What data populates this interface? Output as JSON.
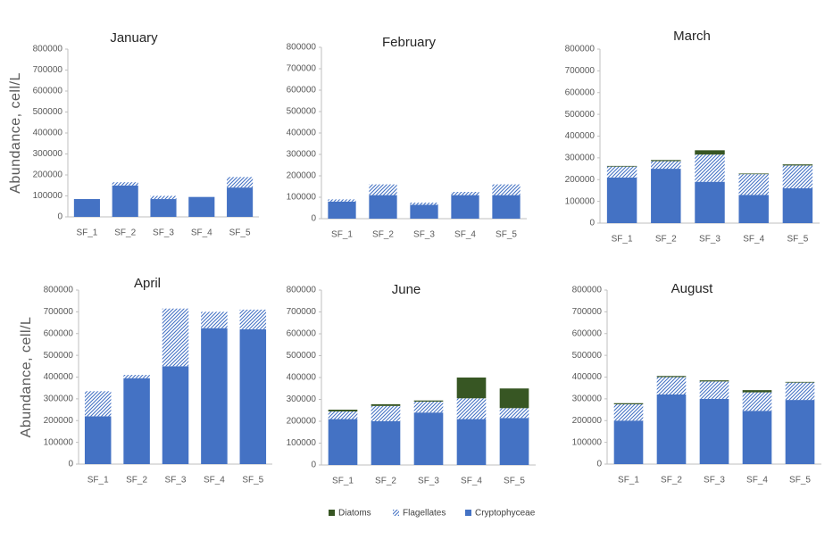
{
  "chart_data": [
    {
      "type": "bar",
      "stacked": true,
      "title": "January",
      "ylabel": "Abundance, cell/L",
      "categories": [
        "SF_1",
        "SF_2",
        "SF_3",
        "SF_4",
        "SF_5"
      ],
      "series": [
        {
          "name": "Cryptophyceae",
          "color": "#4472c4",
          "values": [
            85000,
            150000,
            85000,
            95000,
            140000
          ]
        },
        {
          "name": "Flagellates",
          "color": "#4472c4",
          "hatch": true,
          "values": [
            0,
            15000,
            15000,
            0,
            50000
          ]
        },
        {
          "name": "Diatoms",
          "color": "#375623",
          "values": [
            0,
            0,
            0,
            0,
            0
          ]
        }
      ],
      "ylim": [
        0,
        800000
      ],
      "yticks": [
        0,
        100000,
        200000,
        300000,
        400000,
        500000,
        600000,
        700000,
        800000
      ]
    },
    {
      "type": "bar",
      "stacked": true,
      "title": "February",
      "categories": [
        "SF_1",
        "SF_2",
        "SF_3",
        "SF_4",
        "SF_5"
      ],
      "series": [
        {
          "name": "Cryptophyceae",
          "color": "#4472c4",
          "values": [
            80000,
            110000,
            65000,
            110000,
            110000
          ]
        },
        {
          "name": "Flagellates",
          "color": "#4472c4",
          "hatch": true,
          "values": [
            10000,
            50000,
            10000,
            15000,
            50000
          ]
        },
        {
          "name": "Diatoms",
          "color": "#375623",
          "values": [
            0,
            0,
            0,
            0,
            0
          ]
        }
      ],
      "ylim": [
        0,
        800000
      ],
      "yticks": [
        0,
        100000,
        200000,
        300000,
        400000,
        500000,
        600000,
        700000,
        800000
      ]
    },
    {
      "type": "bar",
      "stacked": true,
      "title": "March",
      "categories": [
        "SF_1",
        "SF_2",
        "SF_3",
        "SF_4",
        "SF_5"
      ],
      "series": [
        {
          "name": "Cryptophyceae",
          "color": "#4472c4",
          "values": [
            210000,
            250000,
            190000,
            130000,
            160000
          ]
        },
        {
          "name": "Flagellates",
          "color": "#4472c4",
          "hatch": true,
          "values": [
            50000,
            35000,
            125000,
            95000,
            105000
          ]
        },
        {
          "name": "Diatoms",
          "color": "#375623",
          "values": [
            3000,
            5000,
            20000,
            3000,
            5000
          ]
        }
      ],
      "ylim": [
        0,
        800000
      ],
      "yticks": [
        0,
        100000,
        200000,
        300000,
        400000,
        500000,
        600000,
        700000,
        800000
      ]
    },
    {
      "type": "bar",
      "stacked": true,
      "title": "April",
      "ylabel": "Abundance, cell/L",
      "categories": [
        "SF_1",
        "SF_2",
        "SF_3",
        "SF_4",
        "SF_5"
      ],
      "series": [
        {
          "name": "Cryptophyceae",
          "color": "#4472c4",
          "values": [
            220000,
            395000,
            450000,
            625000,
            620000
          ]
        },
        {
          "name": "Flagellates",
          "color": "#4472c4",
          "hatch": true,
          "values": [
            115000,
            15000,
            265000,
            75000,
            90000
          ]
        },
        {
          "name": "Diatoms",
          "color": "#375623",
          "values": [
            0,
            0,
            0,
            0,
            0
          ]
        }
      ],
      "ylim": [
        0,
        800000
      ],
      "yticks": [
        0,
        100000,
        200000,
        300000,
        400000,
        500000,
        600000,
        700000,
        800000
      ]
    },
    {
      "type": "bar",
      "stacked": true,
      "title": "June",
      "categories": [
        "SF_1",
        "SF_2",
        "SF_3",
        "SF_4",
        "SF_5"
      ],
      "series": [
        {
          "name": "Cryptophyceae",
          "color": "#4472c4",
          "values": [
            210000,
            200000,
            240000,
            210000,
            215000
          ]
        },
        {
          "name": "Flagellates",
          "color": "#4472c4",
          "hatch": true,
          "values": [
            35000,
            70000,
            50000,
            95000,
            45000
          ]
        },
        {
          "name": "Diatoms",
          "color": "#375623",
          "values": [
            8000,
            8000,
            5000,
            95000,
            90000
          ]
        }
      ],
      "ylim": [
        0,
        800000
      ],
      "yticks": [
        0,
        100000,
        200000,
        300000,
        400000,
        500000,
        600000,
        700000,
        800000
      ]
    },
    {
      "type": "bar",
      "stacked": true,
      "title": "August",
      "categories": [
        "SF_1",
        "SF_2",
        "SF_3",
        "SF_4",
        "SF_5"
      ],
      "series": [
        {
          "name": "Cryptophyceae",
          "color": "#4472c4",
          "values": [
            200000,
            320000,
            300000,
            245000,
            295000
          ]
        },
        {
          "name": "Flagellates",
          "color": "#4472c4",
          "hatch": true,
          "values": [
            75000,
            80000,
            80000,
            85000,
            80000
          ]
        },
        {
          "name": "Diatoms",
          "color": "#375623",
          "values": [
            5000,
            5000,
            5000,
            10000,
            3000
          ]
        }
      ],
      "ylim": [
        0,
        800000
      ],
      "yticks": [
        0,
        100000,
        200000,
        300000,
        400000,
        500000,
        600000,
        700000,
        800000
      ]
    }
  ]
}
